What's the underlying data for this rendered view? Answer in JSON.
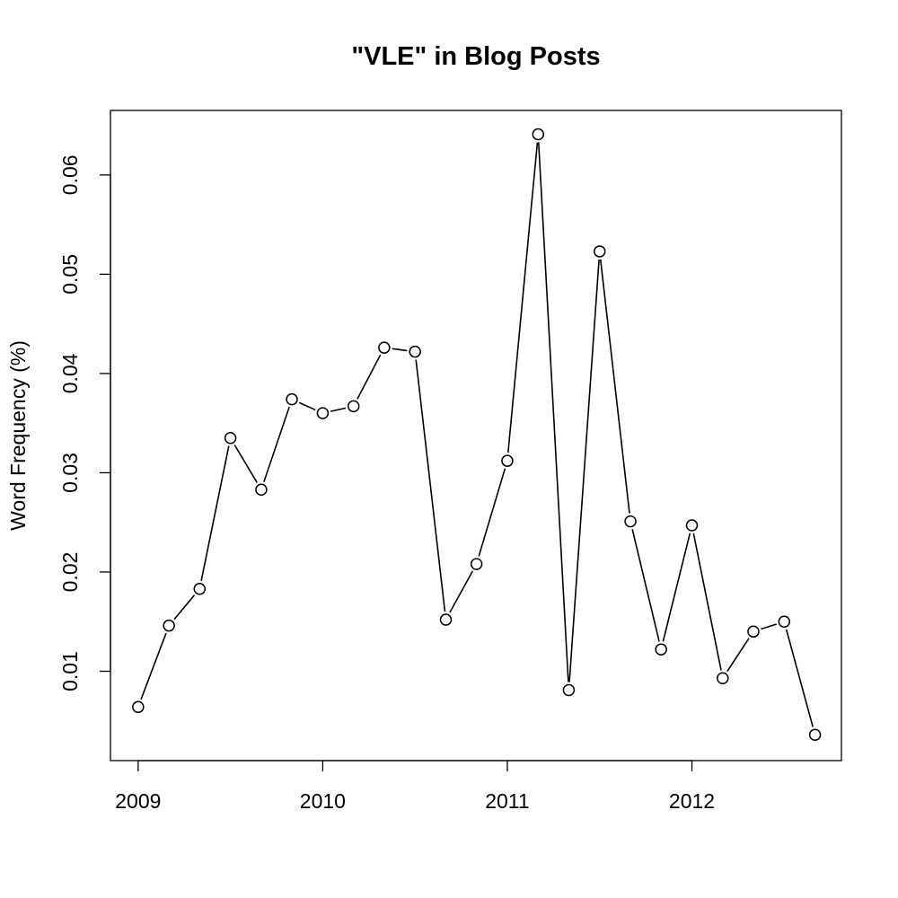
{
  "chart_data": {
    "type": "line",
    "title": "\"VLE\" in Blog Posts",
    "xlabel": "",
    "ylabel": "Word Frequency (%)",
    "x_axis": {
      "ticks": [
        2009,
        2010,
        2011,
        2012
      ],
      "tick_labels": [
        "2009",
        "2010",
        "2011",
        "2012"
      ],
      "lim": [
        2008.85,
        2012.81
      ]
    },
    "y_axis": {
      "ticks": [
        0.01,
        0.02,
        0.03,
        0.04,
        0.05,
        0.06
      ],
      "tick_labels": [
        "0.01",
        "0.02",
        "0.03",
        "0.04",
        "0.05",
        "0.06"
      ],
      "lim": [
        0.001,
        0.0665
      ]
    },
    "grid": false,
    "marker": "open-circle",
    "line_color": "#000000",
    "x": [
      2009.0,
      2009.167,
      2009.333,
      2009.5,
      2009.667,
      2009.833,
      2010.0,
      2010.167,
      2010.333,
      2010.5,
      2010.667,
      2010.833,
      2011.0,
      2011.167,
      2011.333,
      2011.5,
      2011.667,
      2011.833,
      2012.0,
      2012.167,
      2012.333,
      2012.5,
      2012.667
    ],
    "y": [
      0.0064,
      0.0146,
      0.0183,
      0.0335,
      0.0283,
      0.0374,
      0.036,
      0.0367,
      0.0426,
      0.0422,
      0.0152,
      0.0208,
      0.0312,
      0.0641,
      0.0081,
      0.0523,
      0.0251,
      0.0122,
      0.0247,
      0.0093,
      0.014,
      0.015,
      0.0036
    ]
  }
}
